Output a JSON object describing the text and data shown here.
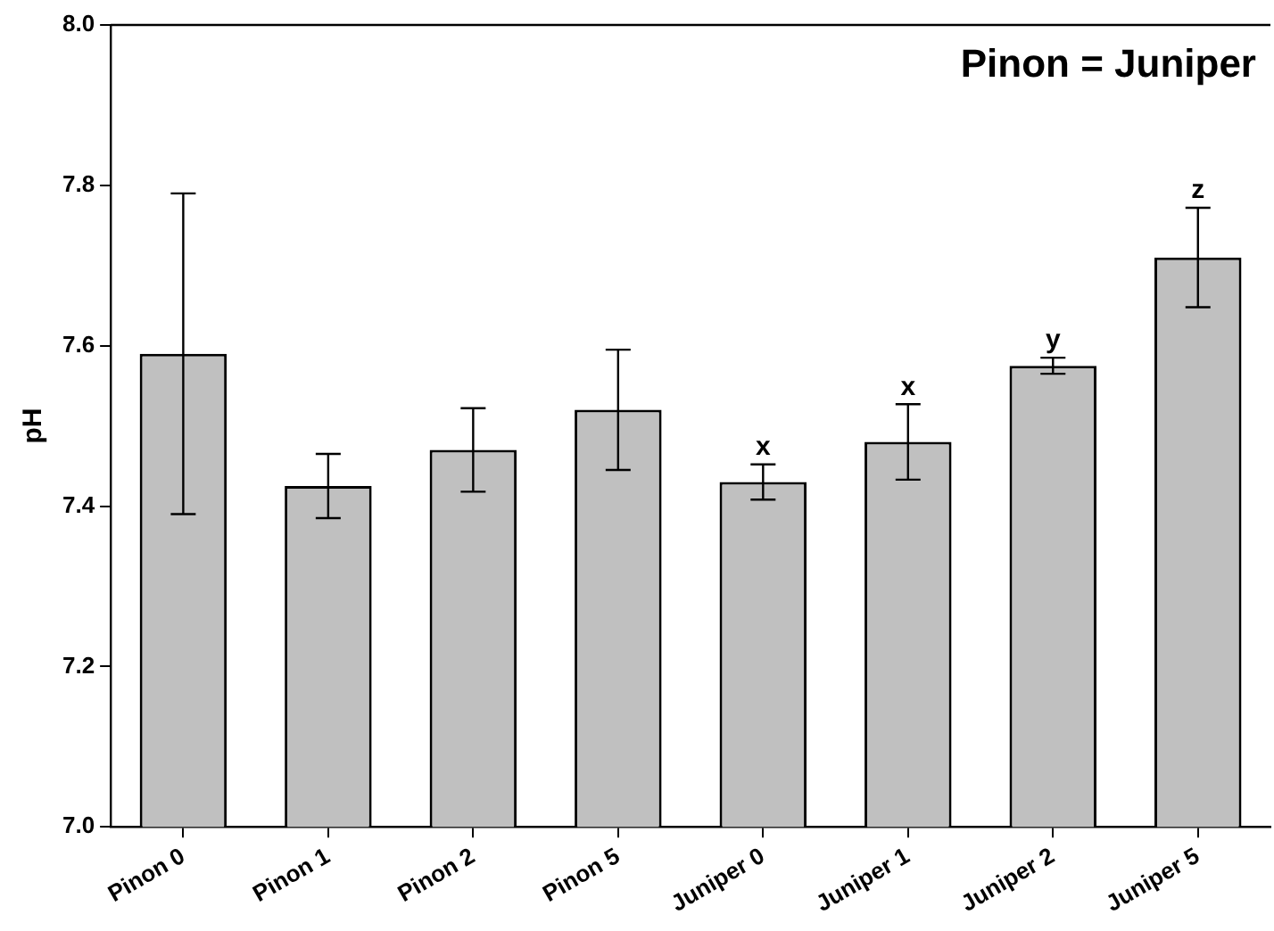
{
  "chart_data": {
    "type": "bar",
    "ylabel": "pH",
    "categories": [
      "Pinon 0",
      "Pinon 1",
      "Pinon 2",
      "Pinon 5",
      "Juniper 0",
      "Juniper 1",
      "Juniper 2",
      "Juniper 5"
    ],
    "values": [
      7.59,
      7.425,
      7.47,
      7.52,
      7.43,
      7.48,
      7.575,
      7.71
    ],
    "errors": [
      0.2,
      0.04,
      0.052,
      0.075,
      0.022,
      0.047,
      0.01,
      0.062
    ],
    "color": "#c0c0c0",
    "ylim": [
      7.0,
      8.0
    ],
    "yticks": [
      {
        "value": 7.0,
        "label": "7.0"
      },
      {
        "value": 7.2,
        "label": "7.2"
      },
      {
        "value": 7.4,
        "label": "7.4"
      },
      {
        "value": 7.6,
        "label": "7.6"
      },
      {
        "value": 7.8,
        "label": "7.8"
      },
      {
        "value": 8.0,
        "label": "8.0"
      }
    ],
    "grid": false,
    "legend": false,
    "annotations": [
      "Pinon = Juniper",
      {
        "text": "x",
        "x": "Juniper 0",
        "y": 7.452
      },
      {
        "text": "x",
        "x": "Juniper 1",
        "y": 7.527
      },
      {
        "text": "y",
        "x": "Juniper 2",
        "y": 7.585
      },
      {
        "text": "z",
        "x": "Juniper 5",
        "y": 7.772
      }
    ]
  }
}
